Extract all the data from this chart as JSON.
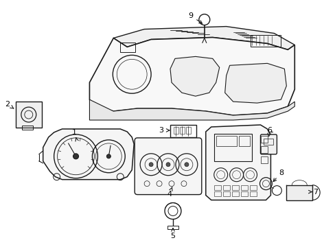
{
  "title": "",
  "bg_color": "#ffffff",
  "line_color": "#1a1a1a",
  "label_color": "#000000",
  "fig_width": 4.89,
  "fig_height": 3.6,
  "dpi": 100
}
